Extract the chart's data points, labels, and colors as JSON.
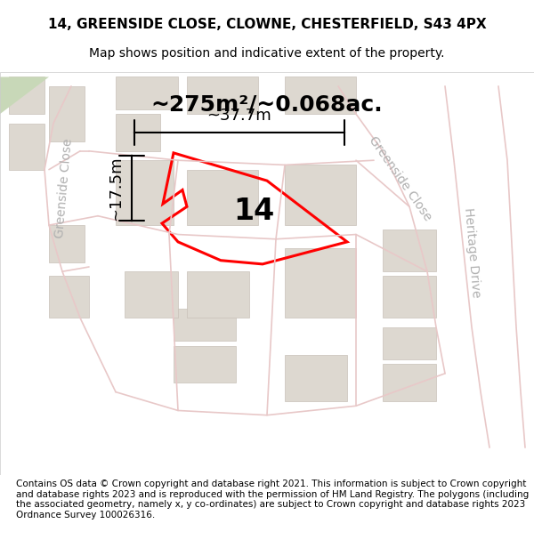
{
  "title_line1": "14, GREENSIDE CLOSE, CLOWNE, CHESTERFIELD, S43 4PX",
  "title_line2": "Map shows position and indicative extent of the property.",
  "footer_text": "Contains OS data © Crown copyright and database right 2021. This information is subject to Crown copyright and database rights 2023 and is reproduced with the permission of HM Land Registry. The polygons (including the associated geometry, namely x, y co-ordinates) are subject to Crown copyright and database rights 2023 Ordnance Survey 100026316.",
  "area_label": "~275m²/~0.068ac.",
  "property_number": "14",
  "width_label": "~37.7m",
  "height_label": "~17.5m",
  "bg_color": "#f5f5f0",
  "map_bg": "#f0ede8",
  "road_color": "#e8c8c8",
  "building_color": "#ddd8d0",
  "building_edge": "#c8c0b8",
  "plot_color": "#ff0000",
  "plot_linewidth": 2.2,
  "title_fontsize": 11,
  "subtitle_fontsize": 10,
  "footer_fontsize": 7.5,
  "label_fontsize": 18,
  "number_fontsize": 24,
  "measure_fontsize": 13,
  "road_label_color": "#b0b0b0",
  "road_label_fontsize": 10,
  "heritage_drive_label": "Heritage Drive",
  "greenside_close_left": "Greenside Close",
  "greenside_close_right": "Greenside Close"
}
